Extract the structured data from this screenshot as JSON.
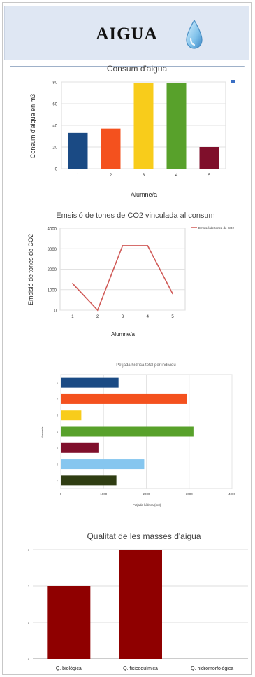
{
  "header": {
    "title": "AIGUA"
  },
  "colors": {
    "blue": "#1a4a84",
    "orange": "#f4511e",
    "yellow": "#f8cc1b",
    "green": "#58a12b",
    "maroon": "#7f0f2b",
    "lightblue": "#86c6ef",
    "darkgreen": "#2f3d12",
    "red_line": "#d05a57",
    "dark_red": "#8f0000"
  },
  "chart_data": [
    {
      "type": "bar",
      "title": "Consum d'aigua",
      "xlabel": "Alumne/a",
      "ylabel": "Consum d'aigua en m3",
      "categories": [
        "1",
        "2",
        "3",
        "4",
        "5"
      ],
      "values": [
        33,
        37,
        79,
        79,
        20
      ],
      "ylim": [
        0,
        80
      ],
      "yticks": [
        "0",
        "20",
        "40",
        "60",
        "80"
      ],
      "bar_colors": [
        "#1a4a84",
        "#f4511e",
        "#f8cc1b",
        "#58a12b",
        "#7f0f2b"
      ],
      "grid": true,
      "legend": "top-right"
    },
    {
      "type": "line",
      "title": "Emsisió de tones de CO2 vinculada al consum",
      "xlabel": "Alumne/a",
      "ylabel": "Emsisió de tones de CO2",
      "x": [
        "1",
        "2",
        "3",
        "4",
        "5"
      ],
      "series": [
        {
          "name": "Emsisió de tones de CO2",
          "values": [
            1300,
            0,
            3150,
            3150,
            800
          ]
        }
      ],
      "ylim": [
        0,
        4000
      ],
      "yticks": [
        "0",
        "1000",
        "2000",
        "3000",
        "4000"
      ],
      "grid": true,
      "legend": "top-right"
    },
    {
      "type": "bar",
      "orientation": "horizontal",
      "title": "Petjada hídrica total per individu",
      "xlabel": "Petjada hídrica (m3)",
      "ylabel": "Alumne/a",
      "categories": [
        "1",
        "2",
        "3",
        "4",
        "5",
        "6",
        "7"
      ],
      "values": [
        1350,
        2950,
        480,
        3100,
        880,
        1950,
        1300
      ],
      "xlim": [
        0,
        4000
      ],
      "xticks": [
        "0",
        "1000",
        "2000",
        "3000",
        "4000"
      ],
      "bar_colors": [
        "#1a4a84",
        "#f4511e",
        "#f8cc1b",
        "#58a12b",
        "#7f0f2b",
        "#86c6ef",
        "#2f3d12"
      ],
      "grid": true
    },
    {
      "type": "bar",
      "title": "Qualitat de les masses d'aigua",
      "categories": [
        "Q. biològica",
        "Q. fisicoquímica",
        "Q. hidromorfològica"
      ],
      "values": [
        2,
        3,
        0
      ],
      "ylim": [
        0,
        3
      ],
      "yticks": [
        "0",
        "1",
        "2",
        "3"
      ],
      "bar_colors": [
        "#8f0000",
        "#8f0000",
        "#8f0000"
      ],
      "grid": true
    }
  ]
}
